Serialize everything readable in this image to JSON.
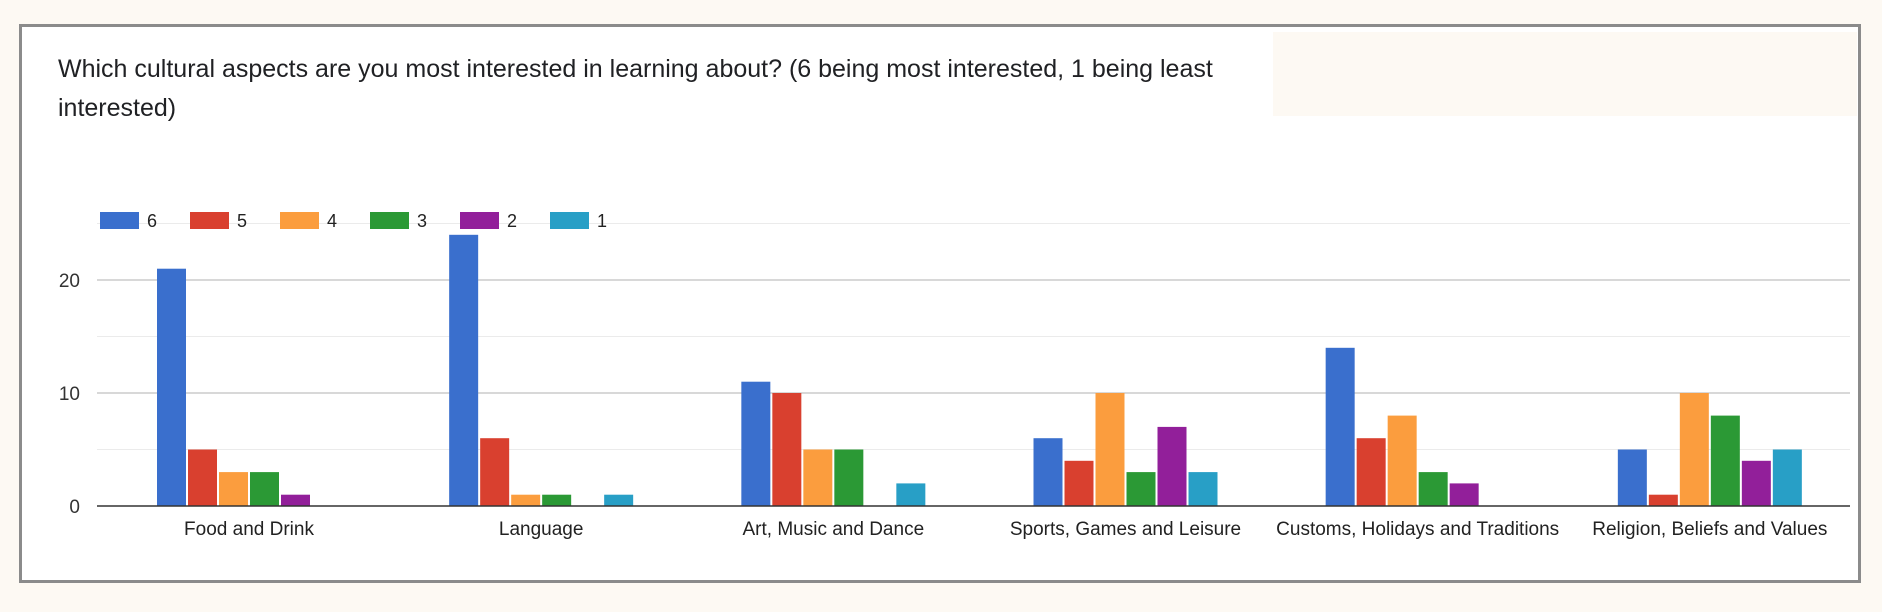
{
  "chart_data": {
    "type": "bar",
    "title": "Which cultural aspects are you most interested in learning about? (6 being most interested, 1 being least interested)",
    "categories": [
      "Food and Drink",
      "Language",
      "Art, Music and Dance",
      "Sports, Games and Leisure",
      "Customs, Holidays and Traditions",
      "Religion, Beliefs and Values"
    ],
    "series": [
      {
        "name": "6",
        "color": "#3a6fcd",
        "values": [
          21,
          24,
          11,
          6,
          14,
          5
        ]
      },
      {
        "name": "5",
        "color": "#d9402f",
        "values": [
          5,
          6,
          10,
          4,
          6,
          1
        ]
      },
      {
        "name": "4",
        "color": "#fb9d3e",
        "values": [
          3,
          1,
          5,
          10,
          8,
          10
        ]
      },
      {
        "name": "3",
        "color": "#2b9935",
        "values": [
          3,
          1,
          5,
          3,
          3,
          8
        ]
      },
      {
        "name": "2",
        "color": "#921f9a",
        "values": [
          1,
          0,
          0,
          7,
          2,
          4
        ]
      },
      {
        "name": "1",
        "color": "#289fc6",
        "values": [
          0,
          1,
          2,
          3,
          0,
          5
        ]
      }
    ],
    "yticks": [
      0,
      10,
      20
    ],
    "ylim": [
      0,
      25
    ],
    "grid": true,
    "legend_position": "top-left"
  }
}
